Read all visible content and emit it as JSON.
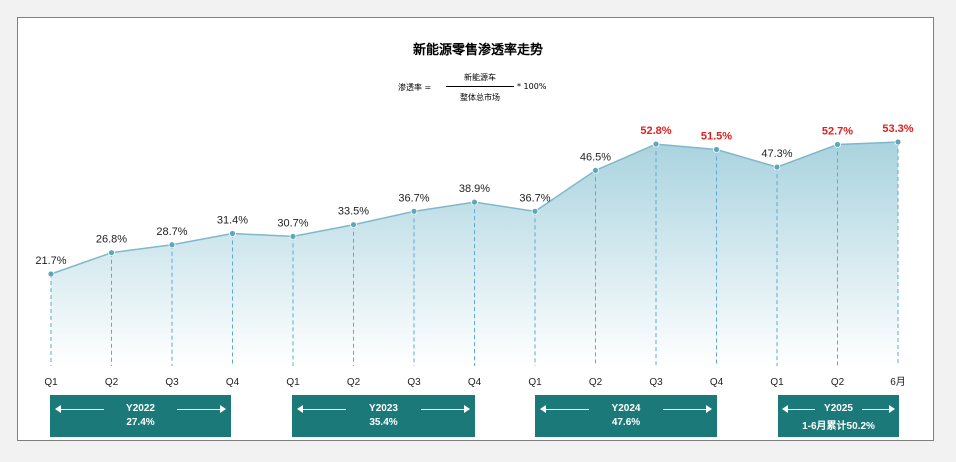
{
  "chart_data": {
    "type": "area",
    "title": "新能源零售渗透率走势",
    "formula": {
      "lhs": "渗透率 =",
      "numerator": "新能源车",
      "denominator": "整体总市场",
      "rhs": "* 100%"
    },
    "categories": [
      "Q1",
      "Q2",
      "Q3",
      "Q4",
      "Q1",
      "Q2",
      "Q3",
      "Q4",
      "Q1",
      "Q2",
      "Q3",
      "Q4",
      "Q1",
      "Q2",
      "6月"
    ],
    "values": [
      21.7,
      26.8,
      28.7,
      31.4,
      30.7,
      33.5,
      36.7,
      38.9,
      36.7,
      46.5,
      52.8,
      51.5,
      47.3,
      52.7,
      53.3
    ],
    "value_labels": [
      "21.7%",
      "26.8%",
      "28.7%",
      "31.4%",
      "30.7%",
      "33.5%",
      "36.7%",
      "38.9%",
      "36.7%",
      "46.5%",
      "52.8%",
      "51.5%",
      "47.3%",
      "52.7%",
      "53.3%"
    ],
    "highlighted_indices": [
      10,
      11,
      13,
      14
    ],
    "ylim": [
      0,
      60
    ],
    "grid": false,
    "colors": {
      "line": "#7fb8c8",
      "fill_top": "#a9d3df",
      "fill_bottom": "#ffffff",
      "marker": "#5fa6ba",
      "dropline": "#5aa9d8",
      "highlight_label": "#e02020",
      "year_box": "#1b7a79"
    },
    "year_groups": [
      {
        "year": "Y2022",
        "value": "27.4%"
      },
      {
        "year": "Y2023",
        "value": "35.4%"
      },
      {
        "year": "Y2024",
        "value": "47.6%"
      },
      {
        "year": "Y2025",
        "value": "1-6月累计50.2%"
      }
    ]
  }
}
